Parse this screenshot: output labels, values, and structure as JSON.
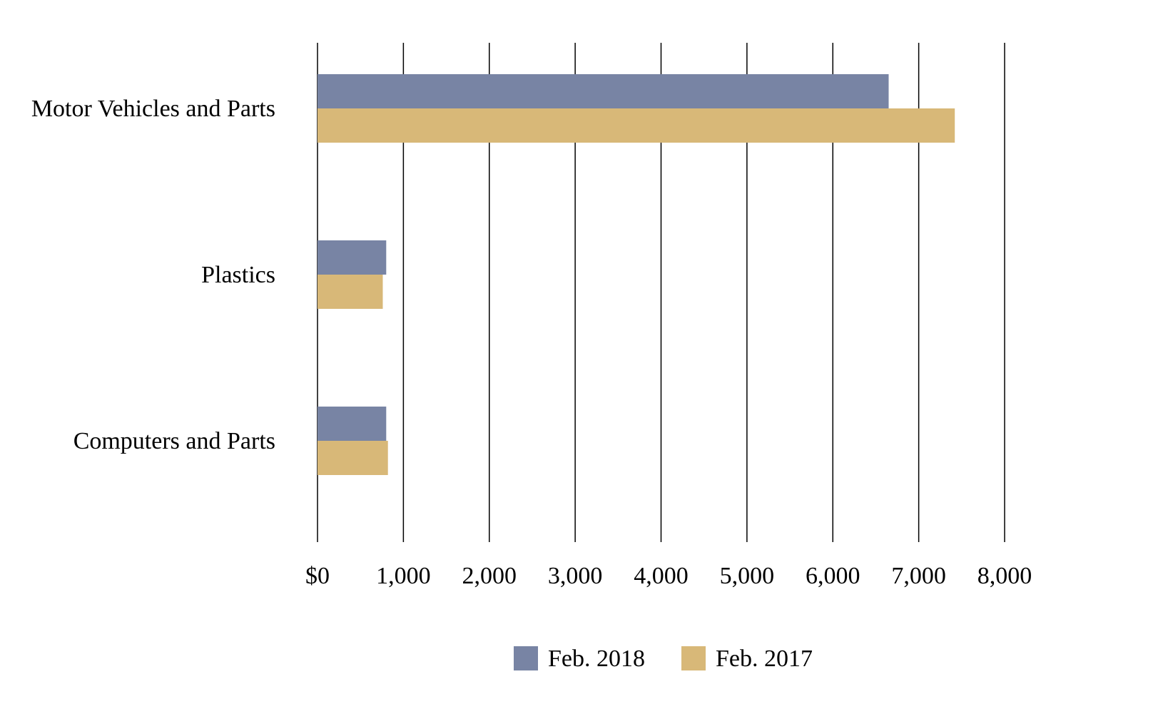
{
  "chart_data": {
    "type": "bar",
    "orientation": "horizontal",
    "categories": [
      "Motor Vehicles and Parts",
      "Plastics",
      "Computers and Parts"
    ],
    "series": [
      {
        "name": "Feb. 2018",
        "color": "#7884a4",
        "values": [
          6650,
          800,
          800
        ]
      },
      {
        "name": "Feb. 2017",
        "color": "#d8b878",
        "values": [
          7420,
          760,
          820
        ]
      }
    ],
    "x_ticks": [
      "$0",
      "1,000",
      "2,000",
      "3,000",
      "4,000",
      "5,000",
      "6,000",
      "7,000",
      "8,000"
    ],
    "xlim": [
      0,
      8000
    ],
    "grid": true,
    "legend_position": "bottom-center"
  }
}
